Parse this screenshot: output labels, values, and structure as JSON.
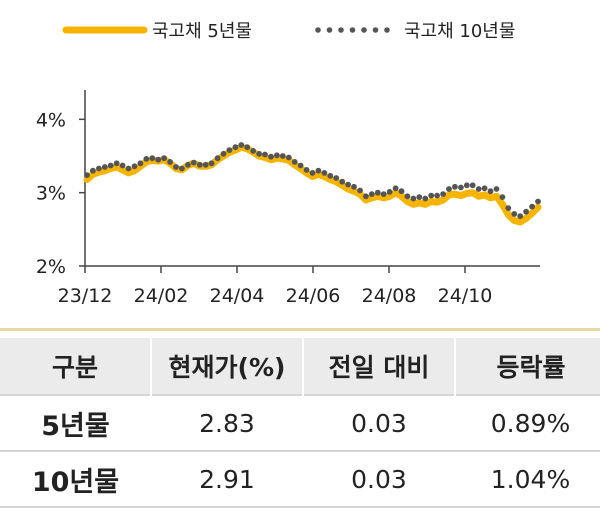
{
  "chart_data": {
    "type": "line",
    "x_ticks": [
      "23/12",
      "24/02",
      "24/04",
      "24/06",
      "24/08",
      "24/10"
    ],
    "y_ticks": [
      "2%",
      "3%",
      "4%"
    ],
    "ylim": [
      2.0,
      4.4
    ],
    "legend_position": "top",
    "series": [
      {
        "name": "국고채 5년물",
        "style": "line",
        "color": "#f5b400",
        "values": [
          3.18,
          3.25,
          3.28,
          3.3,
          3.33,
          3.35,
          3.31,
          3.27,
          3.3,
          3.36,
          3.42,
          3.44,
          3.43,
          3.45,
          3.4,
          3.33,
          3.31,
          3.37,
          3.4,
          3.36,
          3.36,
          3.38,
          3.45,
          3.5,
          3.55,
          3.58,
          3.62,
          3.6,
          3.55,
          3.5,
          3.48,
          3.45,
          3.47,
          3.46,
          3.44,
          3.38,
          3.33,
          3.27,
          3.22,
          3.25,
          3.22,
          3.18,
          3.15,
          3.1,
          3.05,
          3.02,
          2.98,
          2.9,
          2.93,
          2.95,
          2.93,
          2.95,
          3.0,
          2.95,
          2.88,
          2.84,
          2.86,
          2.84,
          2.88,
          2.87,
          2.9,
          2.97,
          2.98,
          2.96,
          2.99,
          3.0,
          2.95,
          2.97,
          2.93,
          2.95,
          2.84,
          2.7,
          2.62,
          2.6,
          2.65,
          2.72,
          2.8
        ]
      },
      {
        "name": "국고채 10년물",
        "style": "dotted",
        "color": "#555555",
        "values": [
          3.24,
          3.3,
          3.33,
          3.35,
          3.37,
          3.4,
          3.37,
          3.33,
          3.36,
          3.4,
          3.46,
          3.47,
          3.45,
          3.47,
          3.42,
          3.35,
          3.33,
          3.38,
          3.41,
          3.38,
          3.38,
          3.4,
          3.47,
          3.53,
          3.58,
          3.62,
          3.65,
          3.62,
          3.57,
          3.53,
          3.52,
          3.49,
          3.51,
          3.5,
          3.48,
          3.42,
          3.37,
          3.31,
          3.27,
          3.3,
          3.27,
          3.23,
          3.2,
          3.15,
          3.11,
          3.08,
          3.03,
          2.95,
          2.98,
          3.0,
          2.98,
          3.01,
          3.06,
          3.02,
          2.95,
          2.92,
          2.94,
          2.92,
          2.96,
          2.96,
          2.98,
          3.05,
          3.08,
          3.07,
          3.1,
          3.1,
          3.05,
          3.06,
          3.02,
          3.05,
          2.94,
          2.79,
          2.71,
          2.68,
          2.74,
          2.81,
          2.88
        ]
      }
    ]
  },
  "table": {
    "headers": [
      "구분",
      "현재가(%)",
      "전일 대비",
      "등락률"
    ],
    "rows": [
      {
        "label": "5년물",
        "price": "2.83",
        "change": "0.03",
        "rate": "0.89%"
      },
      {
        "label": "10년물",
        "price": "2.91",
        "change": "0.03",
        "rate": "1.04%"
      }
    ]
  }
}
